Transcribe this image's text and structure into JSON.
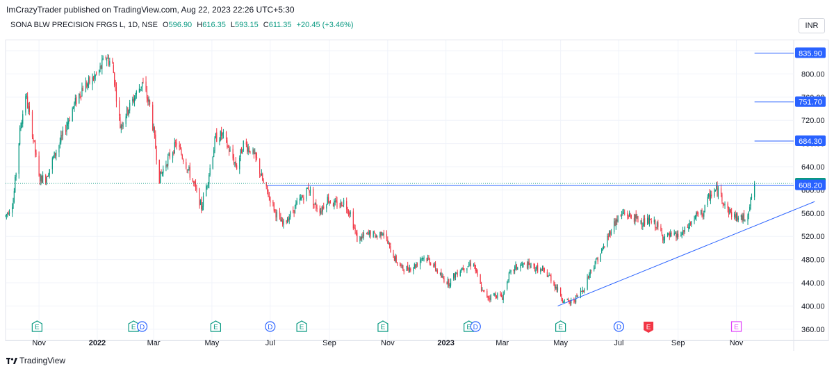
{
  "header": {
    "published": "ImCrazyTrader published on TradingView.com, Aug 22, 2023 22:26 UTC+5:30"
  },
  "legend": {
    "symbol": "SONA BLW PRECISION FRGS L, 1D, NSE",
    "open_label": "O",
    "open": "596.90",
    "high_label": "H",
    "high": "616.35",
    "low_label": "L",
    "low": "593.15",
    "close_label": "C",
    "close": "611.35",
    "change": "+20.45 (+3.46%)"
  },
  "currency": "INR",
  "footer": {
    "brand": "TradingView"
  },
  "colors": {
    "up": "#089981",
    "down": "#f23645",
    "drawing": "#2962ff",
    "grid": "#f0f3fa",
    "axis_text": "#131722",
    "earnings_icon": "#089981",
    "earnings_negative": "#f23645",
    "earnings_upcoming": "#e040fb",
    "dividend_icon": "#2962ff"
  },
  "chart_data": {
    "type": "candlestick",
    "y_axis": {
      "range": [
        355,
        846
      ],
      "ticks": [
        "360.00",
        "400.00",
        "440.00",
        "480.00",
        "520.00",
        "560.00",
        "600.00",
        "640.00",
        "680.00",
        "720.00",
        "760.00",
        "800.00",
        "840.00"
      ],
      "position": "right"
    },
    "x_axis": {
      "ticks": [
        {
          "label": "Nov",
          "date": "2021-11-01",
          "bold": false
        },
        {
          "label": "2022",
          "date": "2022-01-01",
          "bold": true
        },
        {
          "label": "Mar",
          "date": "2022-03-01",
          "bold": false
        },
        {
          "label": "May",
          "date": "2022-05-01",
          "bold": false
        },
        {
          "label": "Jul",
          "date": "2022-07-01",
          "bold": false
        },
        {
          "label": "Sep",
          "date": "2022-09-01",
          "bold": false
        },
        {
          "label": "Nov",
          "date": "2022-11-01",
          "bold": false
        },
        {
          "label": "2023",
          "date": "2023-01-01",
          "bold": true
        },
        {
          "label": "Mar",
          "date": "2023-03-01",
          "bold": false
        },
        {
          "label": "May",
          "date": "2023-05-01",
          "bold": false
        },
        {
          "label": "Jul",
          "date": "2023-07-01",
          "bold": false
        },
        {
          "label": "Sep",
          "date": "2023-09-01",
          "bold": false
        },
        {
          "label": "Nov",
          "date": "2023-11-01",
          "bold": false
        }
      ]
    },
    "price_path": [
      [
        "2021-09-27",
        555
      ],
      [
        "2021-10-05",
        580
      ],
      [
        "2021-10-12",
        700
      ],
      [
        "2021-10-18",
        765
      ],
      [
        "2021-10-25",
        700
      ],
      [
        "2021-11-01",
        620
      ],
      [
        "2021-11-08",
        620
      ],
      [
        "2021-11-16",
        655
      ],
      [
        "2021-11-25",
        690
      ],
      [
        "2021-12-06",
        740
      ],
      [
        "2021-12-16",
        775
      ],
      [
        "2021-12-27",
        790
      ],
      [
        "2022-01-03",
        805
      ],
      [
        "2022-01-10",
        830
      ],
      [
        "2022-01-17",
        815
      ],
      [
        "2022-01-25",
        710
      ],
      [
        "2022-02-01",
        735
      ],
      [
        "2022-02-09",
        760
      ],
      [
        "2022-02-17",
        785
      ],
      [
        "2022-02-25",
        745
      ],
      [
        "2022-03-01",
        700
      ],
      [
        "2022-03-07",
        620
      ],
      [
        "2022-03-15",
        650
      ],
      [
        "2022-03-25",
        680
      ],
      [
        "2022-04-05",
        640
      ],
      [
        "2022-04-12",
        610
      ],
      [
        "2022-04-20",
        570
      ],
      [
        "2022-04-27",
        620
      ],
      [
        "2022-05-05",
        690
      ],
      [
        "2022-05-12",
        695
      ],
      [
        "2022-05-20",
        665
      ],
      [
        "2022-05-27",
        640
      ],
      [
        "2022-06-03",
        680
      ],
      [
        "2022-06-10",
        670
      ],
      [
        "2022-06-17",
        650
      ],
      [
        "2022-06-24",
        610
      ],
      [
        "2022-07-01",
        585
      ],
      [
        "2022-07-07",
        560
      ],
      [
        "2022-07-14",
        540
      ],
      [
        "2022-07-21",
        555
      ],
      [
        "2022-07-29",
        575
      ],
      [
        "2022-08-05",
        590
      ],
      [
        "2022-08-10",
        605
      ],
      [
        "2022-08-16",
        575
      ],
      [
        "2022-08-23",
        565
      ],
      [
        "2022-08-30",
        585
      ],
      [
        "2022-09-06",
        575
      ],
      [
        "2022-09-12",
        575
      ],
      [
        "2022-09-16",
        580
      ],
      [
        "2022-09-23",
        560
      ],
      [
        "2022-09-30",
        515
      ],
      [
        "2022-10-07",
        520
      ],
      [
        "2022-10-14",
        525
      ],
      [
        "2022-10-21",
        520
      ],
      [
        "2022-10-27",
        530
      ],
      [
        "2022-11-03",
        500
      ],
      [
        "2022-11-09",
        480
      ],
      [
        "2022-11-16",
        465
      ],
      [
        "2022-11-23",
        465
      ],
      [
        "2022-11-30",
        470
      ],
      [
        "2022-12-07",
        485
      ],
      [
        "2022-12-14",
        480
      ],
      [
        "2022-12-21",
        465
      ],
      [
        "2022-12-27",
        450
      ],
      [
        "2023-01-04",
        440
      ],
      [
        "2023-01-11",
        455
      ],
      [
        "2023-01-17",
        465
      ],
      [
        "2023-01-23",
        470
      ],
      [
        "2023-01-30",
        475
      ],
      [
        "2023-02-02",
        455
      ],
      [
        "2023-02-08",
        425
      ],
      [
        "2023-02-15",
        415
      ],
      [
        "2023-02-22",
        420
      ],
      [
        "2023-03-01",
        415
      ],
      [
        "2023-03-07",
        450
      ],
      [
        "2023-03-14",
        465
      ],
      [
        "2023-03-21",
        470
      ],
      [
        "2023-03-28",
        470
      ],
      [
        "2023-04-05",
        465
      ],
      [
        "2023-04-12",
        460
      ],
      [
        "2023-04-20",
        450
      ],
      [
        "2023-04-27",
        430
      ],
      [
        "2023-05-04",
        410
      ],
      [
        "2023-05-11",
        405
      ],
      [
        "2023-05-18",
        415
      ],
      [
        "2023-05-25",
        430
      ],
      [
        "2023-06-01",
        460
      ],
      [
        "2023-06-08",
        480
      ],
      [
        "2023-06-15",
        500
      ],
      [
        "2023-06-22",
        530
      ],
      [
        "2023-06-29",
        550
      ],
      [
        "2023-07-06",
        560
      ],
      [
        "2023-07-13",
        555
      ],
      [
        "2023-07-19",
        550
      ],
      [
        "2023-07-26",
        545
      ],
      [
        "2023-08-02",
        545
      ],
      [
        "2023-08-09",
        540
      ],
      [
        "2023-08-16",
        520
      ],
      [
        "2023-08-23",
        520
      ],
      [
        "2023-08-30",
        520
      ],
      [
        "2023-09-06",
        525
      ],
      [
        "2023-09-13",
        540
      ],
      [
        "2023-09-20",
        555
      ],
      [
        "2023-09-27",
        560
      ],
      [
        "2023-10-04",
        590
      ],
      [
        "2023-10-11",
        600
      ],
      [
        "2023-10-16",
        590
      ],
      [
        "2023-10-23",
        565
      ],
      [
        "2023-10-30",
        555
      ],
      [
        "2023-11-06",
        550
      ],
      [
        "2023-11-12",
        555
      ],
      [
        "2023-11-16",
        580
      ],
      [
        "2023-11-20",
        611.35
      ]
    ],
    "price_labels": [
      {
        "value": 835.9,
        "text": "835.90",
        "color": "#2962ff",
        "kind": "level"
      },
      {
        "value": 751.7,
        "text": "751.70",
        "color": "#2962ff",
        "kind": "level"
      },
      {
        "value": 684.3,
        "text": "684.30",
        "color": "#2962ff",
        "kind": "level"
      },
      {
        "value": 611.35,
        "text": "611.35",
        "color": "#089981",
        "kind": "last_price"
      },
      {
        "value": 608.2,
        "text": "608.20",
        "color": "#2962ff",
        "kind": "level"
      }
    ],
    "horizontal_levels": [
      {
        "value": 835.9,
        "from": "2023-11-20"
      },
      {
        "value": 751.7,
        "from": "2023-11-20"
      },
      {
        "value": 684.3,
        "from": "2023-11-20"
      },
      {
        "value": 608.2,
        "from": "2022-06-28"
      }
    ],
    "trendline": {
      "from": [
        "2023-04-28",
        400
      ],
      "to": [
        "2024-01-22",
        580
      ]
    },
    "events": [
      {
        "date": "2021-10-30",
        "icon": "E",
        "kind": "earnings"
      },
      {
        "date": "2022-02-08",
        "icon": "E",
        "kind": "earnings"
      },
      {
        "date": "2022-02-17",
        "icon": "D",
        "kind": "dividend"
      },
      {
        "date": "2022-05-05",
        "icon": "E",
        "kind": "earnings"
      },
      {
        "date": "2022-07-01",
        "icon": "D",
        "kind": "dividend"
      },
      {
        "date": "2022-08-03",
        "icon": "E",
        "kind": "earnings"
      },
      {
        "date": "2022-10-27",
        "icon": "E",
        "kind": "earnings"
      },
      {
        "date": "2023-01-25",
        "icon": "E",
        "kind": "earnings"
      },
      {
        "date": "2023-02-01",
        "icon": "D",
        "kind": "dividend"
      },
      {
        "date": "2023-05-01",
        "icon": "E",
        "kind": "earnings"
      },
      {
        "date": "2023-07-01",
        "icon": "D",
        "kind": "dividend"
      },
      {
        "date": "2023-08-01",
        "icon": "E",
        "kind": "earnings_negative"
      },
      {
        "date": "2023-11-01",
        "icon": "E",
        "kind": "earnings_upcoming"
      }
    ]
  }
}
